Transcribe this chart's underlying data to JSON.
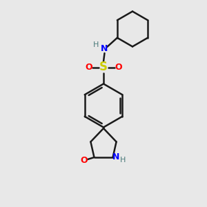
{
  "background_color": "#e8e8e8",
  "bond_color": "#1a1a1a",
  "N_color": "#0000ff",
  "O_color": "#ff0000",
  "S_color": "#cccc00",
  "H_color": "#4a7a7a",
  "figsize": [
    3.0,
    3.0
  ],
  "dpi": 100,
  "xlim": [
    0,
    10
  ],
  "ylim": [
    0,
    10
  ]
}
